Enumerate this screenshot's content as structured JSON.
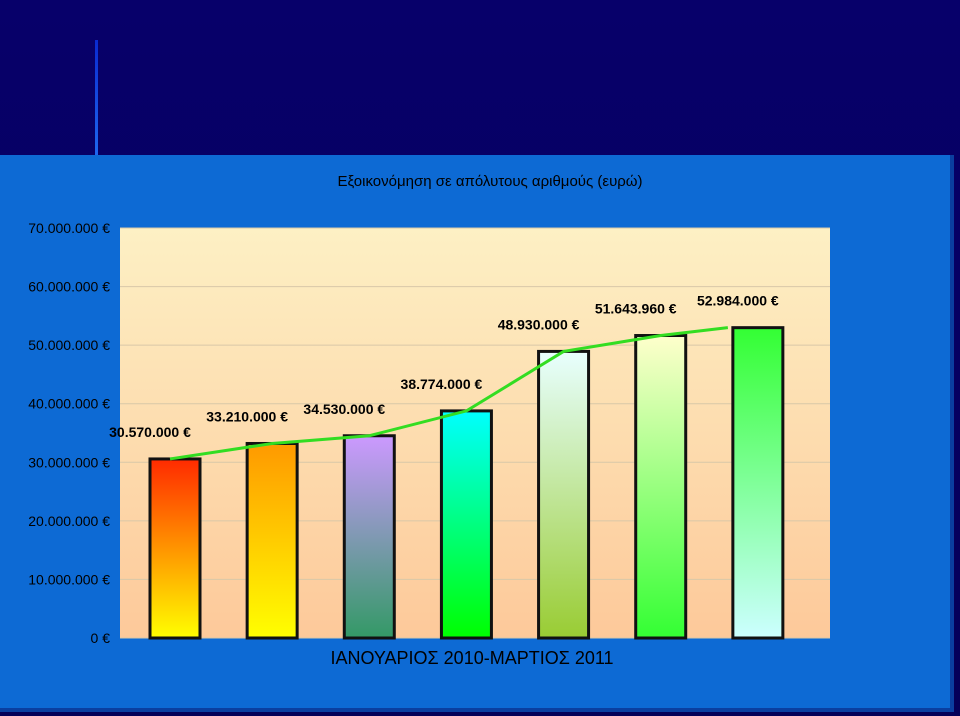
{
  "chart_data": {
    "type": "bar",
    "title": "Εξοικονόμηση σε απόλυτους αριθμούς (ευρώ)",
    "xlabel": "ΙΑΝΟΥΑΡΙΟΣ 2010-ΜΑΡΤΙΟΣ 2011",
    "ylabel": "",
    "ylim": [
      0,
      70000000
    ],
    "y_ticks": [
      0,
      10000000,
      20000000,
      30000000,
      40000000,
      50000000,
      60000000,
      70000000
    ],
    "y_tick_labels": [
      "0 €",
      "10.000.000 €",
      "20.000.000 €",
      "30.000.000 €",
      "40.000.000 €",
      "50.000.000 €",
      "60.000.000 €",
      "70.000.000 €"
    ],
    "values": [
      30570000,
      33210000,
      34530000,
      38774000,
      48930000,
      51643960,
      52984000
    ],
    "value_labels": [
      "30.570.000 €",
      "33.210.000 €",
      "34.530.000 €",
      "38.774.000 €",
      "48.930.000 €",
      "51.643.960 €",
      "52.984.000 €"
    ],
    "trend_line": true,
    "grid": "horizontal",
    "colors": {
      "plot_bg_top": "#fdf0c4",
      "plot_bg_bottom": "#fdc99a",
      "trend": "#33dd22",
      "bars": [
        [
          "#ff2a00",
          "#ffff00"
        ],
        [
          "#ff9900",
          "#ffff00"
        ],
        [
          "#cc99ff",
          "#339966"
        ],
        [
          "#00ffff",
          "#00ff00"
        ],
        [
          "#e8ffff",
          "#99cc33"
        ],
        [
          "#ffffcc",
          "#33ff33"
        ],
        [
          "#33ff33",
          "#ccffff"
        ]
      ]
    }
  }
}
